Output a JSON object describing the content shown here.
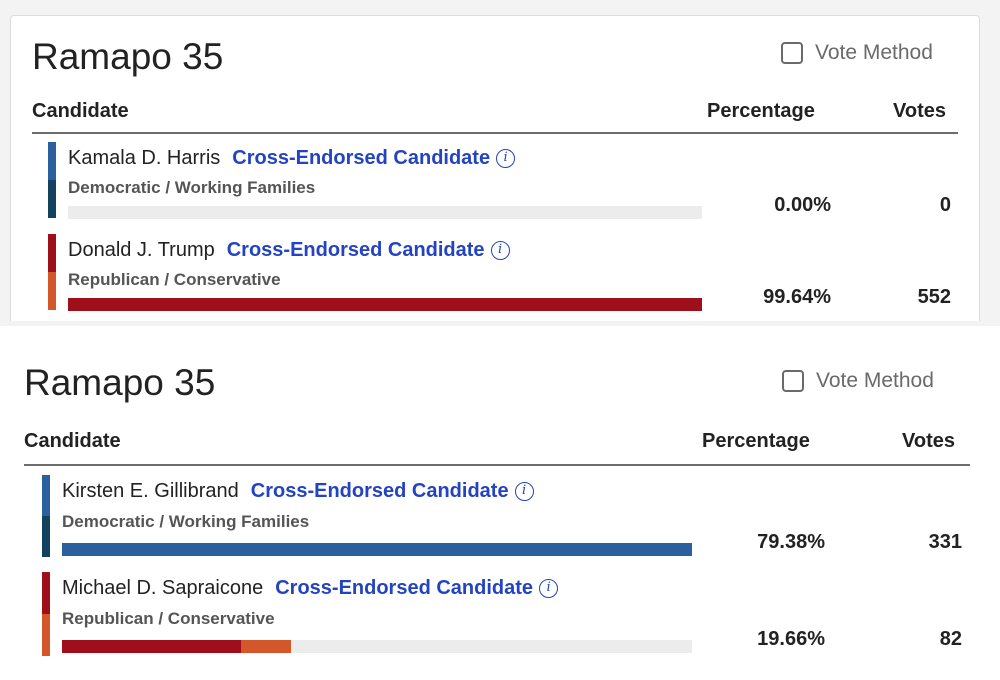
{
  "colors": {
    "dem": "#2c5f9e",
    "dem_alt": "#13425f",
    "rep": "#9e0e1b",
    "rep_alt": "#d4572b",
    "link": "#2343c2"
  },
  "panels": [
    {
      "title": "Ramapo 35",
      "vote_method_label": "Vote Method",
      "headers": {
        "candidate": "Candidate",
        "percentage": "Percentage",
        "votes": "Votes"
      },
      "candidates": [
        {
          "name": "Kamala D. Harris",
          "tag": "Cross-Endorsed Candidate",
          "info_icon": "info-icon",
          "party": "Democratic / Working Families",
          "percentage": "0.00%",
          "votes": "0",
          "share": {
            "primary": 0.0,
            "secondary": 0.0
          }
        },
        {
          "name": "Donald J. Trump",
          "tag": "Cross-Endorsed Candidate",
          "info_icon": "info-icon",
          "party": "Republican / Conservative",
          "percentage": "99.64%",
          "votes": "552",
          "share": {
            "primary": 1.0,
            "secondary": 0.0
          }
        }
      ]
    },
    {
      "title": "Ramapo 35",
      "vote_method_label": "Vote Method",
      "headers": {
        "candidate": "Candidate",
        "percentage": "Percentage",
        "votes": "Votes"
      },
      "candidates": [
        {
          "name": "Kirsten E. Gillibrand",
          "tag": "Cross-Endorsed Candidate",
          "info_icon": "info-icon",
          "party": "Democratic / Working Families",
          "percentage": "79.38%",
          "votes": "331",
          "share": {
            "primary": 1.0,
            "secondary": 0.0
          }
        },
        {
          "name": "Michael D. Sapraicone",
          "tag": "Cross-Endorsed Candidate",
          "info_icon": "info-icon",
          "party": "Republican / Conservative",
          "percentage": "19.66%",
          "votes": "82",
          "share": {
            "primary": 0.284,
            "secondary": 0.08
          }
        }
      ]
    }
  ]
}
